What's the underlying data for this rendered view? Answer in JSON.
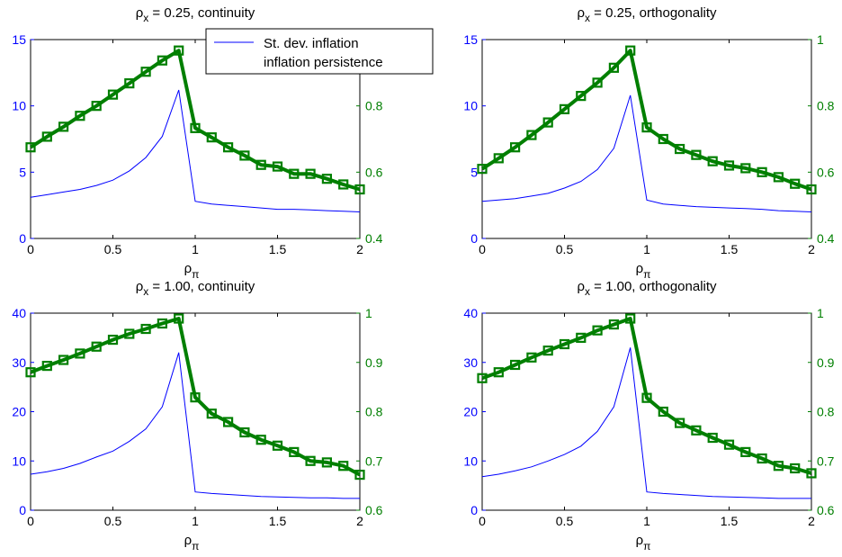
{
  "figure": {
    "legend": {
      "entries": [
        "St. dev. inflation",
        "inflation persistence"
      ],
      "placement": "top-center, over first panel"
    }
  },
  "chart_data": [
    {
      "type": "line",
      "title": "ρx = 0.25, continuity",
      "title_parts": {
        "rho": "ρ",
        "sub": "x",
        "rest": " = 0.25, continuity"
      },
      "xlabel_parts": {
        "rho": "ρ",
        "sub": "π"
      },
      "xlim": [
        0,
        2
      ],
      "xticks": [
        "0",
        "0.5",
        "1",
        "1.5",
        "2"
      ],
      "ylim_left": [
        0,
        15
      ],
      "yticks_left": [
        "0",
        "5",
        "10",
        "15"
      ],
      "ylim_right": [
        0.4,
        1.0
      ],
      "yticks_right": [
        "0.4",
        "0.6",
        "0.8",
        ""
      ],
      "x": [
        0,
        0.1,
        0.2,
        0.3,
        0.4,
        0.5,
        0.6,
        0.7,
        0.8,
        0.9,
        1.0,
        1.1,
        1.2,
        1.3,
        1.4,
        1.5,
        1.6,
        1.7,
        1.8,
        1.9,
        2.0
      ],
      "series": [
        {
          "name": "St. dev. inflation",
          "axis": "left",
          "color": "#0000ff",
          "values": [
            3.1,
            3.3,
            3.5,
            3.7,
            4.0,
            4.4,
            5.1,
            6.1,
            7.7,
            11.2,
            2.8,
            2.6,
            2.5,
            2.4,
            2.3,
            2.2,
            2.2,
            2.15,
            2.1,
            2.05,
            2.0
          ]
        },
        {
          "name": "inflation persistence",
          "axis": "right",
          "color": "#007f00",
          "values": [
            0.675,
            0.707,
            0.737,
            0.77,
            0.8,
            0.834,
            0.868,
            0.903,
            0.937,
            0.967,
            0.733,
            0.705,
            0.675,
            0.65,
            0.622,
            0.617,
            0.595,
            0.595,
            0.58,
            0.563,
            0.548
          ]
        }
      ]
    },
    {
      "type": "line",
      "title": "ρx = 0.25, orthogonality",
      "title_parts": {
        "rho": "ρ",
        "sub": "x",
        "rest": " = 0.25, orthogonality"
      },
      "xlabel_parts": {
        "rho": "ρ",
        "sub": "π"
      },
      "xlim": [
        0,
        2
      ],
      "xticks": [
        "0",
        "0.5",
        "1",
        "1.5",
        "2"
      ],
      "ylim_left": [
        0,
        15
      ],
      "yticks_left": [
        "0",
        "5",
        "10",
        "15"
      ],
      "ylim_right": [
        0.4,
        1.0
      ],
      "yticks_right": [
        "0.4",
        "0.6",
        "0.8",
        "1"
      ],
      "x": [
        0,
        0.1,
        0.2,
        0.3,
        0.4,
        0.5,
        0.6,
        0.7,
        0.8,
        0.9,
        1.0,
        1.1,
        1.2,
        1.3,
        1.4,
        1.5,
        1.6,
        1.7,
        1.8,
        1.9,
        2.0
      ],
      "series": [
        {
          "name": "St. dev. inflation",
          "axis": "left",
          "color": "#0000ff",
          "values": [
            2.8,
            2.9,
            3.0,
            3.2,
            3.4,
            3.8,
            4.3,
            5.2,
            6.8,
            10.8,
            2.9,
            2.6,
            2.5,
            2.4,
            2.35,
            2.3,
            2.25,
            2.2,
            2.1,
            2.05,
            2.0
          ]
        },
        {
          "name": "inflation persistence",
          "axis": "right",
          "color": "#007f00",
          "values": [
            0.61,
            0.642,
            0.675,
            0.712,
            0.75,
            0.79,
            0.83,
            0.87,
            0.915,
            0.967,
            0.735,
            0.7,
            0.67,
            0.652,
            0.633,
            0.62,
            0.612,
            0.6,
            0.585,
            0.565,
            0.548
          ]
        }
      ]
    },
    {
      "type": "line",
      "title": "ρx = 1.00, continuity",
      "title_parts": {
        "rho": "ρ",
        "sub": "x",
        "rest": " = 1.00, continuity"
      },
      "xlabel_parts": {
        "rho": "ρ",
        "sub": "π"
      },
      "xlim": [
        0,
        2
      ],
      "xticks": [
        "0",
        "0.5",
        "1",
        "1.5",
        "2"
      ],
      "ylim_left": [
        0,
        40
      ],
      "yticks_left": [
        "0",
        "10",
        "20",
        "30",
        "40"
      ],
      "ylim_right": [
        0.6,
        1.0
      ],
      "yticks_right": [
        "0.6",
        "0.7",
        "0.8",
        "0.9",
        "1"
      ],
      "x": [
        0,
        0.1,
        0.2,
        0.3,
        0.4,
        0.5,
        0.6,
        0.7,
        0.8,
        0.9,
        1.0,
        1.1,
        1.2,
        1.3,
        1.4,
        1.5,
        1.6,
        1.7,
        1.8,
        1.9,
        2.0
      ],
      "series": [
        {
          "name": "St. dev. inflation",
          "axis": "left",
          "color": "#0000ff",
          "values": [
            7.3,
            7.8,
            8.5,
            9.5,
            10.8,
            12.0,
            14.0,
            16.5,
            21.0,
            32.0,
            3.7,
            3.4,
            3.2,
            3.0,
            2.8,
            2.7,
            2.6,
            2.5,
            2.5,
            2.4,
            2.4
          ]
        },
        {
          "name": "inflation persistence",
          "axis": "right",
          "color": "#007f00",
          "values": [
            0.88,
            0.893,
            0.905,
            0.918,
            0.932,
            0.946,
            0.958,
            0.968,
            0.979,
            0.989,
            0.829,
            0.796,
            0.779,
            0.758,
            0.743,
            0.731,
            0.718,
            0.7,
            0.697,
            0.69,
            0.672
          ]
        }
      ]
    },
    {
      "type": "line",
      "title": "ρx = 1.00, orthogonality",
      "title_parts": {
        "rho": "ρ",
        "sub": "x",
        "rest": " = 1.00, orthogonality"
      },
      "xlabel_parts": {
        "rho": "ρ",
        "sub": "π"
      },
      "xlim": [
        0,
        2
      ],
      "xticks": [
        "0",
        "0.5",
        "1",
        "1.5",
        "2"
      ],
      "ylim_left": [
        0,
        40
      ],
      "yticks_left": [
        "0",
        "10",
        "20",
        "30",
        "40"
      ],
      "ylim_right": [
        0.6,
        1.0
      ],
      "yticks_right": [
        "0.6",
        "0.7",
        "0.8",
        "0.9",
        "1"
      ],
      "x": [
        0,
        0.1,
        0.2,
        0.3,
        0.4,
        0.5,
        0.6,
        0.7,
        0.8,
        0.9,
        1.0,
        1.1,
        1.2,
        1.3,
        1.4,
        1.5,
        1.6,
        1.7,
        1.8,
        1.9,
        2.0
      ],
      "series": [
        {
          "name": "St. dev. inflation",
          "axis": "left",
          "color": "#0000ff",
          "values": [
            6.8,
            7.3,
            8.0,
            8.8,
            10.0,
            11.3,
            13.0,
            16.0,
            21.0,
            33.0,
            3.7,
            3.4,
            3.2,
            3.0,
            2.8,
            2.7,
            2.6,
            2.5,
            2.4,
            2.4,
            2.4
          ]
        },
        {
          "name": "inflation persistence",
          "axis": "right",
          "color": "#007f00",
          "values": [
            0.868,
            0.88,
            0.895,
            0.91,
            0.924,
            0.937,
            0.95,
            0.965,
            0.977,
            0.989,
            0.828,
            0.8,
            0.777,
            0.762,
            0.747,
            0.733,
            0.718,
            0.705,
            0.69,
            0.685,
            0.675
          ]
        }
      ]
    }
  ]
}
